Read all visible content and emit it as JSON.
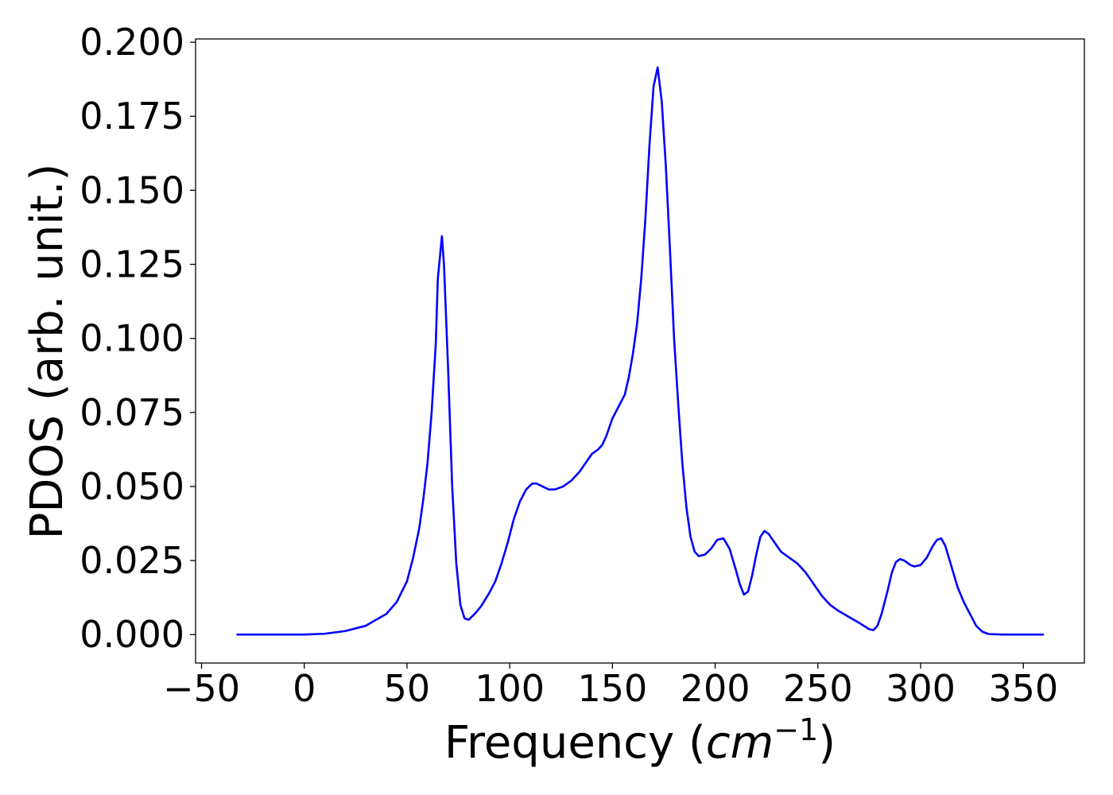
{
  "chart_data": {
    "type": "line",
    "ylabel": "PDOS (arb. unit.)",
    "xlabel": [
      "Frequency (",
      "cm",
      "−1",
      ")"
    ],
    "x": [
      -33,
      -20,
      0,
      10,
      20,
      30,
      40,
      45,
      50,
      53,
      56,
      58,
      60,
      62,
      64,
      65,
      67,
      68,
      70,
      72,
      74,
      76,
      78,
      80,
      83,
      86,
      90,
      93,
      96,
      99,
      102,
      105,
      108,
      111,
      113,
      116,
      119,
      122,
      126,
      130,
      134,
      137,
      140,
      143,
      145,
      147,
      150,
      153,
      156,
      158,
      160,
      162,
      164,
      166,
      168,
      170,
      172,
      174,
      176,
      178,
      180,
      182,
      184,
      186,
      188,
      190,
      192,
      195,
      198,
      201,
      204,
      207,
      210,
      212,
      214,
      216,
      218,
      220,
      222,
      224,
      226,
      229,
      232,
      236,
      240,
      244,
      248,
      252,
      256,
      260,
      265,
      270,
      275,
      277,
      279,
      281,
      284,
      286,
      288,
      290,
      292,
      295,
      297,
      300,
      303,
      306,
      308,
      310,
      312,
      315,
      318,
      321,
      324,
      327,
      330,
      333,
      340,
      350,
      360
    ],
    "values": [
      0,
      0,
      0,
      0.0003,
      0.0012,
      0.003,
      0.007,
      0.011,
      0.018,
      0.026,
      0.036,
      0.046,
      0.058,
      0.075,
      0.098,
      0.12,
      0.1345,
      0.125,
      0.09,
      0.05,
      0.024,
      0.01,
      0.0055,
      0.005,
      0.007,
      0.0095,
      0.014,
      0.018,
      0.024,
      0.031,
      0.039,
      0.045,
      0.049,
      0.051,
      0.051,
      0.05,
      0.049,
      0.049,
      0.05,
      0.052,
      0.055,
      0.058,
      0.061,
      0.0625,
      0.064,
      0.067,
      0.073,
      0.077,
      0.081,
      0.087,
      0.095,
      0.105,
      0.12,
      0.14,
      0.165,
      0.185,
      0.1915,
      0.18,
      0.158,
      0.13,
      0.1,
      0.078,
      0.058,
      0.043,
      0.033,
      0.028,
      0.0265,
      0.027,
      0.029,
      0.032,
      0.0325,
      0.029,
      0.022,
      0.017,
      0.0135,
      0.0145,
      0.02,
      0.027,
      0.033,
      0.035,
      0.034,
      0.031,
      0.028,
      0.026,
      0.024,
      0.021,
      0.017,
      0.013,
      0.01,
      0.008,
      0.006,
      0.004,
      0.0018,
      0.0015,
      0.003,
      0.007,
      0.015,
      0.021,
      0.0245,
      0.0255,
      0.025,
      0.0235,
      0.023,
      0.0235,
      0.026,
      0.03,
      0.032,
      0.0325,
      0.03,
      0.023,
      0.016,
      0.011,
      0.007,
      0.003,
      0.001,
      0.0002,
      0,
      0,
      0
    ],
    "color": "#0000ff",
    "xlim": [
      -52.9,
      379.7
    ],
    "ylim": [
      -0.0096,
      0.2011
    ],
    "xticks": [
      {
        "value": -50,
        "label": "−50"
      },
      0,
      50,
      100,
      150,
      200,
      250,
      300,
      350
    ],
    "yticks": [
      {
        "value": 0,
        "label": "0.000"
      },
      {
        "value": 0.025,
        "label": "0.025"
      },
      {
        "value": 0.05,
        "label": "0.050"
      },
      {
        "value": 0.075,
        "label": "0.075"
      },
      {
        "value": 0.1,
        "label": "0.100"
      },
      {
        "value": 0.125,
        "label": "0.125"
      },
      {
        "value": 0.15,
        "label": "0.150"
      },
      {
        "value": 0.175,
        "label": "0.175"
      },
      {
        "value": 0.2,
        "label": "0.200"
      }
    ]
  }
}
